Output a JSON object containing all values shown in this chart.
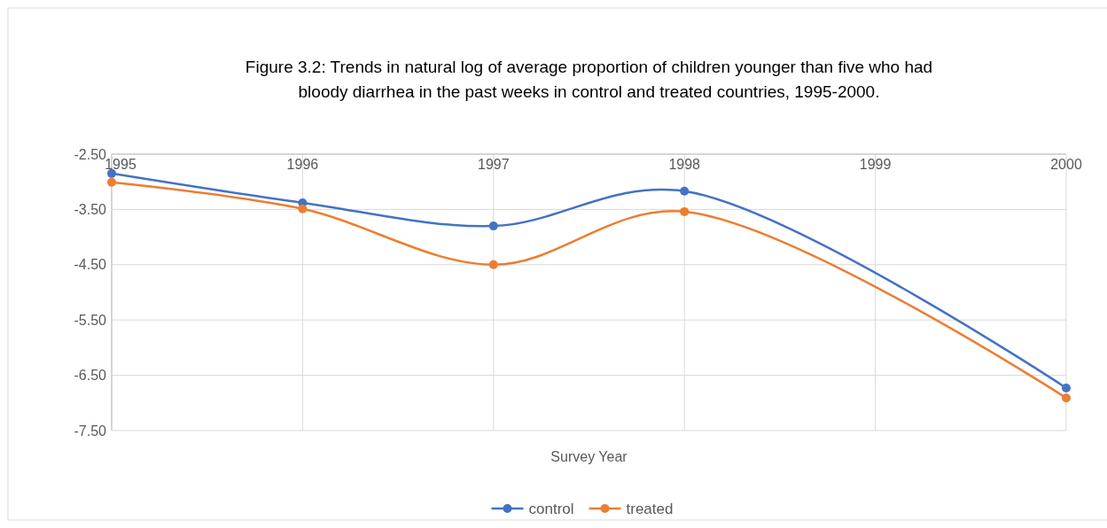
{
  "chart_data": {
    "type": "line",
    "title": "Figure 3.2: Trends in natural log of average proportion of children younger than five who had bloody diarrhea in the past weeks in control and treated countries, 1995-2000.",
    "xlabel": "Survey Year",
    "x": [
      1995,
      1996,
      1997,
      1998,
      2000
    ],
    "series": [
      {
        "name": "control",
        "color": "#4472c4",
        "values": [
          -2.85,
          -3.38,
          -3.8,
          -3.17,
          -6.73
        ]
      },
      {
        "name": "treated",
        "color": "#ed7d31",
        "values": [
          -3.01,
          -3.49,
          -4.5,
          -3.54,
          -6.91
        ]
      }
    ],
    "xlim": [
      1995,
      2000
    ],
    "xticks": [
      1995,
      1996,
      1997,
      1998,
      1999,
      2000
    ],
    "ylim": [
      -7.5,
      -2.5
    ],
    "yticks": [
      {
        "value": -2.5,
        "label": "-2.50"
      },
      {
        "value": -3.5,
        "label": "-3.50"
      },
      {
        "value": -4.5,
        "label": "-4.50"
      },
      {
        "value": -5.5,
        "label": "-5.50"
      },
      {
        "value": -6.5,
        "label": "-6.50"
      },
      {
        "value": -7.5,
        "label": "-7.50"
      }
    ],
    "grid": true,
    "legend": "bottom",
    "marker": "circle",
    "line_style": "solid"
  }
}
